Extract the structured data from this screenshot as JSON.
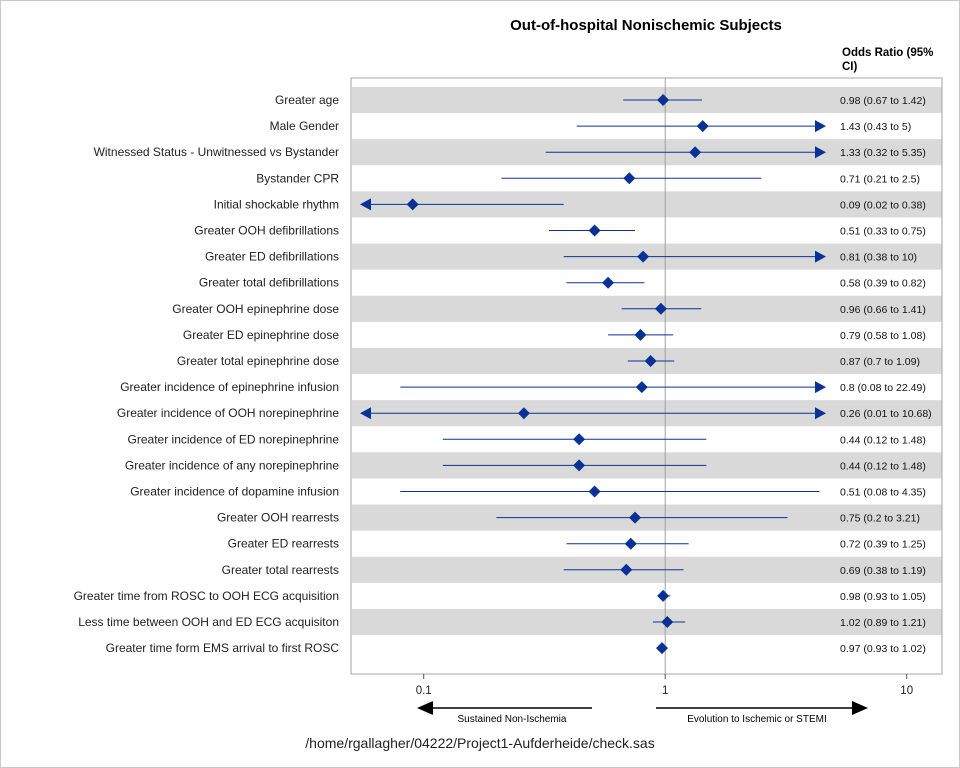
{
  "chart_data": {
    "type": "forest",
    "title": "Out-of-hospital Nonischemic Subjects",
    "or_column_header": [
      "Odds Ratio (95%",
      "CI)"
    ],
    "x_scale": "log",
    "x_ticks": [
      0.1,
      1,
      10
    ],
    "x_tick_labels": [
      "0.1",
      "1",
      "10"
    ],
    "xlim": [
      0.05,
      14
    ],
    "reference_line": 1,
    "arrows": {
      "left_label": "Sustained Non-Ischemia",
      "right_label": "Evolution to Ischemic or STEMI"
    },
    "band_color": "#d9d9d9",
    "marker_color": "#0a3296",
    "rows": [
      {
        "label": "Greater age",
        "or": 0.98,
        "lo": 0.67,
        "hi": 1.42,
        "text": "0.98 (0.67 to 1.42)"
      },
      {
        "label": "Male Gender",
        "or": 1.43,
        "lo": 0.43,
        "hi": 5,
        "text": "1.43 (0.43 to 5)"
      },
      {
        "label": "Witnessed Status - Unwitnessed vs Bystander",
        "or": 1.33,
        "lo": 0.32,
        "hi": 5.35,
        "text": "1.33 (0.32 to 5.35)"
      },
      {
        "label": "Bystander CPR",
        "or": 0.71,
        "lo": 0.21,
        "hi": 2.5,
        "text": "0.71 (0.21 to 2.5)"
      },
      {
        "label": "Initial shockable rhythm",
        "or": 0.09,
        "lo": 0.02,
        "hi": 0.38,
        "text": "0.09 (0.02 to 0.38)"
      },
      {
        "label": "Greater OOH defibrillations",
        "or": 0.51,
        "lo": 0.33,
        "hi": 0.75,
        "text": "0.51 (0.33 to 0.75)"
      },
      {
        "label": "Greater ED defibrillations",
        "or": 0.81,
        "lo": 0.38,
        "hi": 10,
        "text": "0.81 (0.38 to 10)"
      },
      {
        "label": "Greater total defibrillations",
        "or": 0.58,
        "lo": 0.39,
        "hi": 0.82,
        "text": "0.58 (0.39 to 0.82)"
      },
      {
        "label": "Greater OOH epinephrine dose",
        "or": 0.96,
        "lo": 0.66,
        "hi": 1.41,
        "text": "0.96 (0.66 to 1.41)"
      },
      {
        "label": "Greater ED epinephrine dose",
        "or": 0.79,
        "lo": 0.58,
        "hi": 1.08,
        "text": "0.79 (0.58 to 1.08)"
      },
      {
        "label": "Greater total epinephrine dose",
        "or": 0.87,
        "lo": 0.7,
        "hi": 1.09,
        "text": "0.87 (0.7 to 1.09)"
      },
      {
        "label": "Greater incidence of epinephrine infusion",
        "or": 0.8,
        "lo": 0.08,
        "hi": 22.49,
        "text": "0.8 (0.08 to 22.49)"
      },
      {
        "label": "Greater incidence of OOH norepinephrine",
        "or": 0.26,
        "lo": 0.01,
        "hi": 10.68,
        "text": "0.26 (0.01 to 10.68)"
      },
      {
        "label": "Greater incidence of ED norepinephrine",
        "or": 0.44,
        "lo": 0.12,
        "hi": 1.48,
        "text": "0.44 (0.12 to 1.48)"
      },
      {
        "label": "Greater incidence of any norepinephrine",
        "or": 0.44,
        "lo": 0.12,
        "hi": 1.48,
        "text": "0.44 (0.12 to 1.48)"
      },
      {
        "label": "Greater incidence of dopamine infusion",
        "or": 0.51,
        "lo": 0.08,
        "hi": 4.35,
        "text": "0.51 (0.08 to 4.35)"
      },
      {
        "label": "Greater OOH rearrests",
        "or": 0.75,
        "lo": 0.2,
        "hi": 3.21,
        "text": "0.75 (0.2 to 3.21)"
      },
      {
        "label": "Greater ED rearrests",
        "or": 0.72,
        "lo": 0.39,
        "hi": 1.25,
        "text": "0.72 (0.39 to 1.25)"
      },
      {
        "label": "Greater total rearrests",
        "or": 0.69,
        "lo": 0.38,
        "hi": 1.19,
        "text": "0.69 (0.38 to 1.19)"
      },
      {
        "label": "Greater time from ROSC to OOH ECG acquisition",
        "or": 0.98,
        "lo": 0.93,
        "hi": 1.05,
        "text": "0.98 (0.93 to 1.05)"
      },
      {
        "label": "Less time between OOH and ED ECG acquisiton",
        "or": 1.02,
        "lo": 0.89,
        "hi": 1.21,
        "text": "1.02 (0.89 to 1.21)"
      },
      {
        "label": "Greater time form EMS arrival to first ROSC",
        "or": 0.97,
        "lo": 0.93,
        "hi": 1.02,
        "text": "0.97 (0.93 to 1.02)"
      }
    ]
  },
  "footer": {
    "path": "/home/rgallagher/04222/Project1-Aufderheide/check.sas"
  }
}
